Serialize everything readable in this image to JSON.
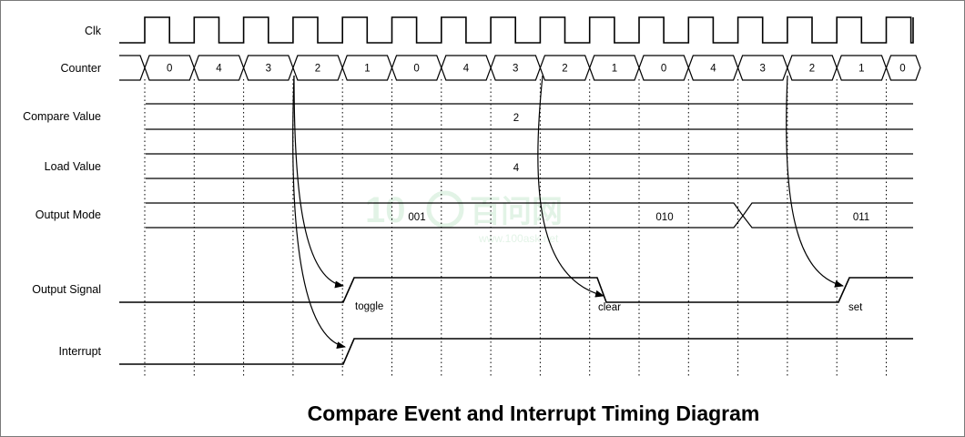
{
  "title": "Compare Event and Interrupt Timing Diagram",
  "signals": {
    "clk": "Clk",
    "counter": "Counter",
    "compare_value": "Compare Value",
    "load_value": "Load Value",
    "output_mode": "Output Mode",
    "output_signal": "Output Signal",
    "interrupt": "Interrupt"
  },
  "counter_values": [
    "0",
    "4",
    "3",
    "2",
    "1",
    "0",
    "4",
    "3",
    "2",
    "1",
    "0",
    "4",
    "3",
    "2",
    "1",
    "0"
  ],
  "compare_value": "2",
  "load_value": "4",
  "output_mode_values": [
    "001",
    "010",
    "011"
  ],
  "annotations": {
    "toggle": "toggle",
    "clear": "clear",
    "set": "set"
  },
  "watermark": "100 百问网 www.100ask.net"
}
